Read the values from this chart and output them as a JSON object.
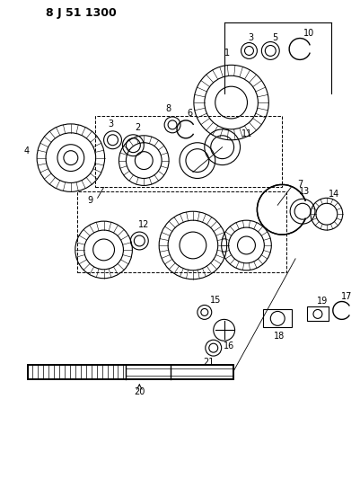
{
  "title": "8 J 51 1300",
  "bg_color": "#ffffff",
  "line_color": "#000000",
  "fig_width": 4.01,
  "fig_height": 5.33,
  "dpi": 100,
  "parts": {
    "part1_label": "1",
    "part2_label": "2",
    "part3_label": "3",
    "part4_label": "4",
    "part5_label": "5",
    "part6_label": "6",
    "part7_label": "7",
    "part8_label": "8",
    "part9_label": "9",
    "part10_label": "10",
    "part11_label": "11",
    "part12_label": "12",
    "part13_label": "13",
    "part14_label": "14",
    "part15_label": "15",
    "part16_label": "16",
    "part17_label": "17",
    "part18_label": "18",
    "part19_label": "19",
    "part20_label": "20",
    "part21_label": "21"
  }
}
